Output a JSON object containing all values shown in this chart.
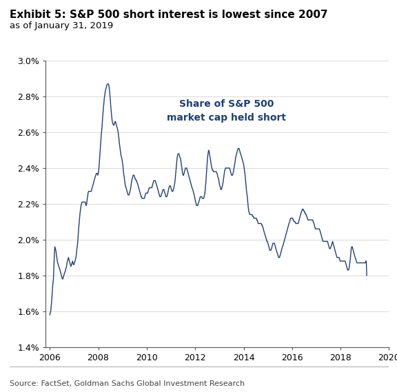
{
  "title": "Exhibit 5: S&P 500 short interest is lowest since 2007",
  "subtitle": "as of January 31, 2019",
  "source": "Source: FactSet, Goldman Sachs Global Investment Research",
  "annotation": "Share of S&P 500\nmarket cap held short",
  "line_color": "#1f3f7a",
  "background_color": "#ffffff",
  "ylim": [
    0.014,
    0.03
  ],
  "yticks": [
    0.014,
    0.016,
    0.018,
    0.02,
    0.022,
    0.024,
    0.026,
    0.028,
    0.03
  ],
  "xticks": [
    2006,
    2008,
    2010,
    2012,
    2014,
    2016,
    2018,
    2020
  ],
  "xlim": [
    2005.83,
    2020.0
  ],
  "title_fontsize": 11,
  "subtitle_fontsize": 9.5,
  "annotation_fontsize": 10,
  "dates": [
    2006.0,
    2006.02,
    2006.04,
    2006.06,
    2006.08,
    2006.1,
    2006.12,
    2006.15,
    2006.17,
    2006.19,
    2006.21,
    2006.23,
    2006.25,
    2006.27,
    2006.29,
    2006.31,
    2006.33,
    2006.35,
    2006.37,
    2006.4,
    2006.42,
    2006.44,
    2006.46,
    2006.48,
    2006.5,
    2006.52,
    2006.54,
    2006.56,
    2006.58,
    2006.6,
    2006.63,
    2006.65,
    2006.67,
    2006.69,
    2006.71,
    2006.73,
    2006.75,
    2006.77,
    2006.79,
    2006.81,
    2006.83,
    2006.85,
    2006.87,
    2006.9,
    2006.92,
    2006.94,
    2006.96,
    2006.98,
    2007.0,
    2007.02,
    2007.04,
    2007.06,
    2007.08,
    2007.1,
    2007.12,
    2007.15,
    2007.17,
    2007.19,
    2007.21,
    2007.23,
    2007.25,
    2007.27,
    2007.29,
    2007.31,
    2007.33,
    2007.35,
    2007.37,
    2007.4,
    2007.42,
    2007.44,
    2007.46,
    2007.48,
    2007.5,
    2007.52,
    2007.54,
    2007.56,
    2007.58,
    2007.6,
    2007.63,
    2007.65,
    2007.67,
    2007.69,
    2007.71,
    2007.73,
    2007.75,
    2007.77,
    2007.79,
    2007.81,
    2007.83,
    2007.85,
    2007.87,
    2007.9,
    2007.92,
    2007.94,
    2007.96,
    2007.98,
    2008.0,
    2008.02,
    2008.04,
    2008.06,
    2008.08,
    2008.1,
    2008.12,
    2008.15,
    2008.17,
    2008.19,
    2008.21,
    2008.23,
    2008.25,
    2008.27,
    2008.29,
    2008.31,
    2008.33,
    2008.35,
    2008.37,
    2008.4,
    2008.42,
    2008.44,
    2008.46,
    2008.48,
    2008.5,
    2008.52,
    2008.54,
    2008.56,
    2008.58,
    2008.6,
    2008.63,
    2008.65,
    2008.67,
    2008.69,
    2008.71,
    2008.73,
    2008.75,
    2008.77,
    2008.79,
    2008.81,
    2008.83,
    2008.85,
    2008.87,
    2008.9,
    2008.92,
    2008.94,
    2008.96,
    2008.98,
    2009.0,
    2009.02,
    2009.04,
    2009.06,
    2009.08,
    2009.1,
    2009.12,
    2009.15,
    2009.17,
    2009.19,
    2009.21,
    2009.23,
    2009.25,
    2009.27,
    2009.29,
    2009.31,
    2009.33,
    2009.35,
    2009.37,
    2009.4,
    2009.42,
    2009.44,
    2009.46,
    2009.48,
    2009.5,
    2009.52,
    2009.54,
    2009.56,
    2009.58,
    2009.6,
    2009.63,
    2009.65,
    2009.67,
    2009.69,
    2009.71,
    2009.73,
    2009.75,
    2009.77,
    2009.79,
    2009.81,
    2009.83,
    2009.85,
    2009.87,
    2009.9,
    2009.92,
    2009.94,
    2009.96,
    2009.98,
    2010.0,
    2010.02,
    2010.04,
    2010.06,
    2010.08,
    2010.1,
    2010.12,
    2010.15,
    2010.17,
    2010.19,
    2010.21,
    2010.23,
    2010.25,
    2010.27,
    2010.29,
    2010.31,
    2010.33,
    2010.35,
    2010.37,
    2010.4,
    2010.42,
    2010.44,
    2010.46,
    2010.48,
    2010.5,
    2010.52,
    2010.54,
    2010.56,
    2010.58,
    2010.6,
    2010.63,
    2010.65,
    2010.67,
    2010.69,
    2010.71,
    2010.73,
    2010.75,
    2010.77,
    2010.79,
    2010.81,
    2010.83,
    2010.85,
    2010.87,
    2010.9,
    2010.92,
    2010.94,
    2010.96,
    2010.98,
    2011.0,
    2011.02,
    2011.04,
    2011.06,
    2011.08,
    2011.1,
    2011.12,
    2011.15,
    2011.17,
    2011.19,
    2011.21,
    2011.23,
    2011.25,
    2011.27,
    2011.29,
    2011.31,
    2011.33,
    2011.35,
    2011.37,
    2011.4,
    2011.42,
    2011.44,
    2011.46,
    2011.48,
    2011.5,
    2011.52,
    2011.54,
    2011.56,
    2011.58,
    2011.6,
    2011.63,
    2011.65,
    2011.67,
    2011.69,
    2011.71,
    2011.73,
    2011.75,
    2011.77,
    2011.79,
    2011.81,
    2011.83,
    2011.85,
    2011.87,
    2011.9,
    2011.92,
    2011.94,
    2011.96,
    2011.98,
    2012.0,
    2012.02,
    2012.04,
    2012.06,
    2012.08,
    2012.1,
    2012.12,
    2012.15,
    2012.17,
    2012.19,
    2012.21,
    2012.23,
    2012.25,
    2012.27,
    2012.29,
    2012.31,
    2012.33,
    2012.35,
    2012.37,
    2012.4,
    2012.42,
    2012.44,
    2012.46,
    2012.48,
    2012.5,
    2012.52,
    2012.54,
    2012.56,
    2012.58,
    2012.6,
    2012.63,
    2012.65,
    2012.67,
    2012.69,
    2012.71,
    2012.73,
    2012.75,
    2012.77,
    2012.79,
    2012.81,
    2012.83,
    2012.85,
    2012.87,
    2012.9,
    2012.92,
    2012.94,
    2012.96,
    2012.98,
    2013.0,
    2013.02,
    2013.04,
    2013.06,
    2013.08,
    2013.1,
    2013.12,
    2013.15,
    2013.17,
    2013.19,
    2013.21,
    2013.23,
    2013.25,
    2013.27,
    2013.29,
    2013.31,
    2013.33,
    2013.35,
    2013.37,
    2013.4,
    2013.42,
    2013.44,
    2013.46,
    2013.48,
    2013.5,
    2013.52,
    2013.54,
    2013.56,
    2013.58,
    2013.6,
    2013.63,
    2013.65,
    2013.67,
    2013.69,
    2013.71,
    2013.73,
    2013.75,
    2013.77,
    2013.79,
    2013.81,
    2013.83,
    2013.85,
    2013.87,
    2013.9,
    2013.92,
    2013.94,
    2013.96,
    2013.98,
    2014.0,
    2014.02,
    2014.04,
    2014.06,
    2014.08,
    2014.1,
    2014.12,
    2014.15,
    2014.17,
    2014.19,
    2014.21,
    2014.23,
    2014.25,
    2014.27,
    2014.29,
    2014.31,
    2014.33,
    2014.35,
    2014.37,
    2014.4,
    2014.42,
    2014.44,
    2014.46,
    2014.48,
    2014.5,
    2014.52,
    2014.54,
    2014.56,
    2014.58,
    2014.6,
    2014.63,
    2014.65,
    2014.67,
    2014.69,
    2014.71,
    2014.73,
    2014.75,
    2014.77,
    2014.79,
    2014.81,
    2014.83,
    2014.85,
    2014.87,
    2014.9,
    2014.92,
    2014.94,
    2014.96,
    2014.98,
    2015.0,
    2015.02,
    2015.04,
    2015.06,
    2015.08,
    2015.1,
    2015.12,
    2015.15,
    2015.17,
    2015.19,
    2015.21,
    2015.23,
    2015.25,
    2015.27,
    2015.29,
    2015.31,
    2015.33,
    2015.35,
    2015.37,
    2015.4,
    2015.42,
    2015.44,
    2015.46,
    2015.48,
    2015.5,
    2015.52,
    2015.54,
    2015.56,
    2015.58,
    2015.6,
    2015.63,
    2015.65,
    2015.67,
    2015.69,
    2015.71,
    2015.73,
    2015.75,
    2015.77,
    2015.79,
    2015.81,
    2015.83,
    2015.85,
    2015.87,
    2015.9,
    2015.92,
    2015.94,
    2015.96,
    2015.98,
    2016.0,
    2016.02,
    2016.04,
    2016.06,
    2016.08,
    2016.1,
    2016.12,
    2016.15,
    2016.17,
    2016.19,
    2016.21,
    2016.23,
    2016.25,
    2016.27,
    2016.29,
    2016.31,
    2016.33,
    2016.35,
    2016.37,
    2016.4,
    2016.42,
    2016.44,
    2016.46,
    2016.48,
    2016.5,
    2016.52,
    2016.54,
    2016.56,
    2016.58,
    2016.6,
    2016.63,
    2016.65,
    2016.67,
    2016.69,
    2016.71,
    2016.73,
    2016.75,
    2016.77,
    2016.79,
    2016.81,
    2016.83,
    2016.85,
    2016.87,
    2016.9,
    2016.92,
    2016.94,
    2016.96,
    2016.98,
    2017.0,
    2017.02,
    2017.04,
    2017.06,
    2017.08,
    2017.1,
    2017.12,
    2017.15,
    2017.17,
    2017.19,
    2017.21,
    2017.23,
    2017.25,
    2017.27,
    2017.29,
    2017.31,
    2017.33,
    2017.35,
    2017.37,
    2017.4,
    2017.42,
    2017.44,
    2017.46,
    2017.48,
    2017.5,
    2017.52,
    2017.54,
    2017.56,
    2017.58,
    2017.6,
    2017.63,
    2017.65,
    2017.67,
    2017.69,
    2017.71,
    2017.73,
    2017.75,
    2017.77,
    2017.79,
    2017.81,
    2017.83,
    2017.85,
    2017.87,
    2017.9,
    2017.92,
    2017.94,
    2017.96,
    2017.98,
    2018.0,
    2018.02,
    2018.04,
    2018.06,
    2018.08,
    2018.1,
    2018.12,
    2018.15,
    2018.17,
    2018.19,
    2018.21,
    2018.23,
    2018.25,
    2018.27,
    2018.29,
    2018.31,
    2018.33,
    2018.35,
    2018.37,
    2018.4,
    2018.42,
    2018.44,
    2018.46,
    2018.48,
    2018.5,
    2018.52,
    2018.54,
    2018.56,
    2018.58,
    2018.6,
    2018.63,
    2018.65,
    2018.67,
    2018.69,
    2018.71,
    2018.73,
    2018.75,
    2018.77,
    2018.79,
    2018.81,
    2018.83,
    2018.85,
    2018.87,
    2018.9,
    2018.92,
    2018.94,
    2018.96,
    2018.98,
    2019.0,
    2019.02,
    2019.04,
    2019.06,
    2019.08
  ],
  "values": [
    0.0158,
    0.0159,
    0.016,
    0.0163,
    0.0166,
    0.017,
    0.0174,
    0.0178,
    0.0185,
    0.0192,
    0.0196,
    0.0195,
    0.0194,
    0.0192,
    0.019,
    0.0188,
    0.0187,
    0.0186,
    0.0185,
    0.0184,
    0.0183,
    0.0182,
    0.0181,
    0.018,
    0.0179,
    0.0178,
    0.0178,
    0.0179,
    0.018,
    0.0181,
    0.0182,
    0.0183,
    0.0184,
    0.0185,
    0.0187,
    0.0188,
    0.0189,
    0.019,
    0.0189,
    0.0188,
    0.0187,
    0.0186,
    0.0185,
    0.0186,
    0.0187,
    0.0188,
    0.0187,
    0.0186,
    0.0186,
    0.0187,
    0.0188,
    0.0189,
    0.019,
    0.0192,
    0.0195,
    0.0198,
    0.0202,
    0.0206,
    0.0209,
    0.0212,
    0.0215,
    0.0217,
    0.0219,
    0.022,
    0.0221,
    0.0221,
    0.0221,
    0.0221,
    0.0221,
    0.0221,
    0.0221,
    0.022,
    0.0219,
    0.022,
    0.0222,
    0.0224,
    0.0226,
    0.0227,
    0.0227,
    0.0227,
    0.0227,
    0.0227,
    0.0227,
    0.0228,
    0.0229,
    0.023,
    0.0231,
    0.0232,
    0.0233,
    0.0234,
    0.0235,
    0.0236,
    0.0237,
    0.0237,
    0.0237,
    0.0236,
    0.0237,
    0.0239,
    0.0242,
    0.0246,
    0.025,
    0.0254,
    0.0258,
    0.0262,
    0.0266,
    0.027,
    0.0273,
    0.0276,
    0.0279,
    0.0281,
    0.0283,
    0.0284,
    0.0285,
    0.0286,
    0.0287,
    0.0287,
    0.0287,
    0.0286,
    0.0284,
    0.0281,
    0.0278,
    0.0274,
    0.0271,
    0.0268,
    0.0266,
    0.0265,
    0.0264,
    0.0264,
    0.0265,
    0.0266,
    0.0266,
    0.0265,
    0.0264,
    0.0263,
    0.0262,
    0.0261,
    0.0259,
    0.0257,
    0.0254,
    0.0251,
    0.0249,
    0.0247,
    0.0246,
    0.0245,
    0.0243,
    0.0241,
    0.0238,
    0.0236,
    0.0234,
    0.0232,
    0.023,
    0.0229,
    0.0228,
    0.0227,
    0.0226,
    0.0225,
    0.0225,
    0.0225,
    0.0226,
    0.0227,
    0.0228,
    0.023,
    0.0232,
    0.0234,
    0.0235,
    0.0236,
    0.0236,
    0.0236,
    0.0235,
    0.0234,
    0.0234,
    0.0233,
    0.0233,
    0.0232,
    0.0231,
    0.023,
    0.0229,
    0.0228,
    0.0227,
    0.0226,
    0.0225,
    0.0224,
    0.0224,
    0.0223,
    0.0223,
    0.0223,
    0.0223,
    0.0223,
    0.0224,
    0.0225,
    0.0226,
    0.0226,
    0.0226,
    0.0226,
    0.0226,
    0.0227,
    0.0228,
    0.0229,
    0.0229,
    0.0229,
    0.0229,
    0.0229,
    0.0229,
    0.023,
    0.0231,
    0.0232,
    0.0233,
    0.0233,
    0.0233,
    0.0233,
    0.0232,
    0.0231,
    0.023,
    0.0229,
    0.0228,
    0.0227,
    0.0226,
    0.0225,
    0.0224,
    0.0224,
    0.0224,
    0.0225,
    0.0226,
    0.0227,
    0.0228,
    0.0228,
    0.0228,
    0.0227,
    0.0226,
    0.0225,
    0.0224,
    0.0224,
    0.0224,
    0.0225,
    0.0226,
    0.0228,
    0.0229,
    0.023,
    0.023,
    0.023,
    0.0229,
    0.0228,
    0.0227,
    0.0227,
    0.0227,
    0.0228,
    0.0229,
    0.0231,
    0.0233,
    0.0236,
    0.0239,
    0.0242,
    0.0245,
    0.0247,
    0.0248,
    0.0248,
    0.0248,
    0.0247,
    0.0246,
    0.0245,
    0.0243,
    0.0241,
    0.0239,
    0.0237,
    0.0236,
    0.0236,
    0.0237,
    0.0238,
    0.0239,
    0.024,
    0.024,
    0.024,
    0.0239,
    0.0238,
    0.0237,
    0.0236,
    0.0235,
    0.0234,
    0.0233,
    0.0232,
    0.0231,
    0.023,
    0.0229,
    0.0228,
    0.0227,
    0.0226,
    0.0225,
    0.0224,
    0.0222,
    0.0221,
    0.022,
    0.0219,
    0.0219,
    0.0219,
    0.022,
    0.0221,
    0.0222,
    0.0223,
    0.0224,
    0.0224,
    0.0224,
    0.0224,
    0.0223,
    0.0223,
    0.0223,
    0.0223,
    0.0224,
    0.0226,
    0.0229,
    0.0232,
    0.0236,
    0.024,
    0.0244,
    0.0247,
    0.0249,
    0.025,
    0.0249,
    0.0247,
    0.0245,
    0.0243,
    0.0241,
    0.024,
    0.0239,
    0.0239,
    0.0238,
    0.0238,
    0.0238,
    0.0238,
    0.0238,
    0.0238,
    0.0238,
    0.0237,
    0.0236,
    0.0235,
    0.0234,
    0.0233,
    0.0231,
    0.023,
    0.0229,
    0.0228,
    0.0228,
    0.0229,
    0.023,
    0.0232,
    0.0234,
    0.0236,
    0.0238,
    0.0239,
    0.024,
    0.024,
    0.024,
    0.024,
    0.024,
    0.024,
    0.024,
    0.024,
    0.024,
    0.0239,
    0.0238,
    0.0237,
    0.0236,
    0.0236,
    0.0236,
    0.0237,
    0.0238,
    0.024,
    0.0242,
    0.0244,
    0.0246,
    0.0247,
    0.0248,
    0.0249,
    0.025,
    0.0251,
    0.0251,
    0.0251,
    0.025,
    0.0249,
    0.0248,
    0.0247,
    0.0246,
    0.0245,
    0.0244,
    0.0243,
    0.0242,
    0.024,
    0.0238,
    0.0236,
    0.0233,
    0.023,
    0.0227,
    0.0224,
    0.0221,
    0.0218,
    0.0216,
    0.0215,
    0.0214,
    0.0214,
    0.0214,
    0.0214,
    0.0214,
    0.0214,
    0.0213,
    0.0213,
    0.0212,
    0.0212,
    0.0212,
    0.0212,
    0.0212,
    0.0212,
    0.0211,
    0.0211,
    0.021,
    0.0209,
    0.0209,
    0.0209,
    0.0209,
    0.0209,
    0.0209,
    0.0209,
    0.0208,
    0.0208,
    0.0207,
    0.0206,
    0.0205,
    0.0204,
    0.0203,
    0.0202,
    0.0201,
    0.02,
    0.0199,
    0.0199,
    0.0198,
    0.0197,
    0.0196,
    0.0195,
    0.0194,
    0.0194,
    0.0194,
    0.0195,
    0.0196,
    0.0197,
    0.0198,
    0.0198,
    0.0198,
    0.0198,
    0.0197,
    0.0196,
    0.0195,
    0.0194,
    0.0193,
    0.0192,
    0.0191,
    0.019,
    0.019,
    0.019,
    0.0191,
    0.0192,
    0.0193,
    0.0194,
    0.0195,
    0.0196,
    0.0197,
    0.0198,
    0.0199,
    0.02,
    0.0201,
    0.0202,
    0.0203,
    0.0204,
    0.0205,
    0.0206,
    0.0207,
    0.0208,
    0.0209,
    0.021,
    0.0211,
    0.0212,
    0.0212,
    0.0212,
    0.0212,
    0.0212,
    0.0211,
    0.0211,
    0.021,
    0.021,
    0.021,
    0.0209,
    0.0209,
    0.0209,
    0.0209,
    0.0209,
    0.0209,
    0.021,
    0.0211,
    0.0212,
    0.0213,
    0.0214,
    0.0215,
    0.0216,
    0.0217,
    0.0217,
    0.0217,
    0.0216,
    0.0216,
    0.0215,
    0.0215,
    0.0214,
    0.0214,
    0.0213,
    0.0212,
    0.0211,
    0.0211,
    0.0211,
    0.0211,
    0.0211,
    0.0211,
    0.0211,
    0.0211,
    0.0211,
    0.0211,
    0.0211,
    0.021,
    0.0209,
    0.0208,
    0.0207,
    0.0206,
    0.0206,
    0.0206,
    0.0206,
    0.0206,
    0.0206,
    0.0206,
    0.0206,
    0.0206,
    0.0205,
    0.0204,
    0.0203,
    0.0202,
    0.0201,
    0.02,
    0.0199,
    0.0199,
    0.0199,
    0.0199,
    0.0199,
    0.0199,
    0.0199,
    0.0199,
    0.0199,
    0.0199,
    0.0198,
    0.0197,
    0.0196,
    0.0195,
    0.0195,
    0.0195,
    0.0196,
    0.0197,
    0.0198,
    0.0199,
    0.0198,
    0.0197,
    0.0196,
    0.0195,
    0.0194,
    0.0193,
    0.0192,
    0.0191,
    0.019,
    0.019,
    0.019,
    0.019,
    0.019,
    0.0189,
    0.0188,
    0.0188,
    0.0188,
    0.0188,
    0.0188,
    0.0188,
    0.0188,
    0.0188,
    0.0188,
    0.0188,
    0.0188,
    0.0187,
    0.0186,
    0.0185,
    0.0184,
    0.0183,
    0.0183,
    0.0183,
    0.0184,
    0.0186,
    0.0189,
    0.0192,
    0.0195,
    0.0196,
    0.0196,
    0.0195,
    0.0194,
    0.0193,
    0.0192,
    0.0191,
    0.019,
    0.0189,
    0.0188,
    0.0187,
    0.0187,
    0.0187,
    0.0187,
    0.0187,
    0.0187,
    0.0187,
    0.0187,
    0.0187,
    0.0187,
    0.0187,
    0.0187,
    0.0187,
    0.0187,
    0.0187,
    0.0187,
    0.0187,
    0.0187,
    0.0188,
    0.0188,
    0.018
  ]
}
